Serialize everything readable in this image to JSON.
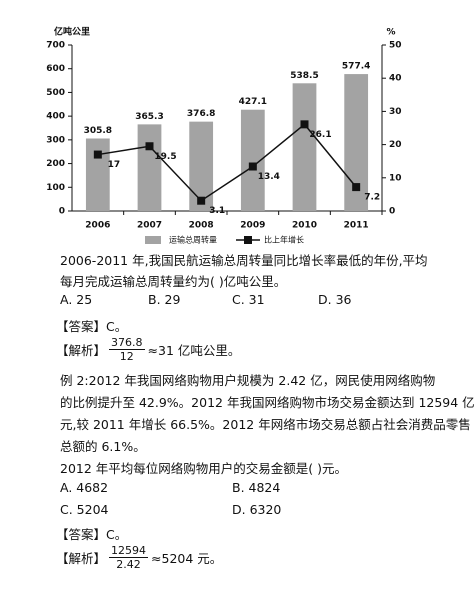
{
  "chart_data": {
    "type": "combo",
    "y_label": "亿吨公里",
    "y2_label": "%",
    "categories": [
      "2006",
      "2007",
      "2008",
      "2009",
      "2010",
      "2011"
    ],
    "series": [
      {
        "name": "运输总周转量",
        "type": "bar",
        "color": "#a3a3a3",
        "values": [
          305.8,
          365.3,
          376.8,
          427.1,
          538.5,
          577.4
        ]
      },
      {
        "name": "比上年增长",
        "type": "line",
        "axis": "y2",
        "color": "#111111",
        "values": [
          17,
          19.5,
          3.1,
          13.4,
          26.1,
          7.2
        ]
      }
    ],
    "ylim": [
      0,
      700
    ],
    "yticks": [
      0,
      100,
      200,
      300,
      400,
      500,
      600,
      700
    ],
    "y2lim": [
      0,
      50
    ],
    "y2ticks": [
      0,
      10,
      20,
      30,
      40,
      50
    ],
    "legend": "bottom"
  },
  "question1": {
    "stem": [
      "2006-2011 年,我国民航运输总周转量同比增长率最低的年份,平均",
      "每月完成运输总周转量约为(   )亿吨公里。"
    ],
    "options": [
      "A. 25",
      "B. 29",
      "C. 31",
      "D. 36"
    ],
    "answer": "【答案】C。",
    "explanation": {
      "label": "【解析】",
      "numerator": "376.8",
      "denominator": "12",
      "result": "≈31 亿吨公里。"
    }
  },
  "question2": {
    "material": [
      "例 2:2012 年我国网络购物用户规模为 2.42 亿，网民使用网络购物",
      "的比例提升至 42.9%。2012 年我国网络购物市场交易金额达到 12594 亿",
      "元,较 2011 年增长 66.5%。2012 年网络市场交易总额占社会消费品零售",
      "总额的 6.1%。"
    ],
    "stem": "2012 年平均每位网络购物用户的交易金额是(   )元。",
    "options": [
      "A. 4682",
      "B. 4824",
      "C. 5204",
      "D. 6320"
    ],
    "answer": "【答案】C。",
    "explanation": {
      "label": "【解析】",
      "numerator": "12594",
      "denominator": "2.42",
      "result": "≈5204 元。"
    }
  }
}
